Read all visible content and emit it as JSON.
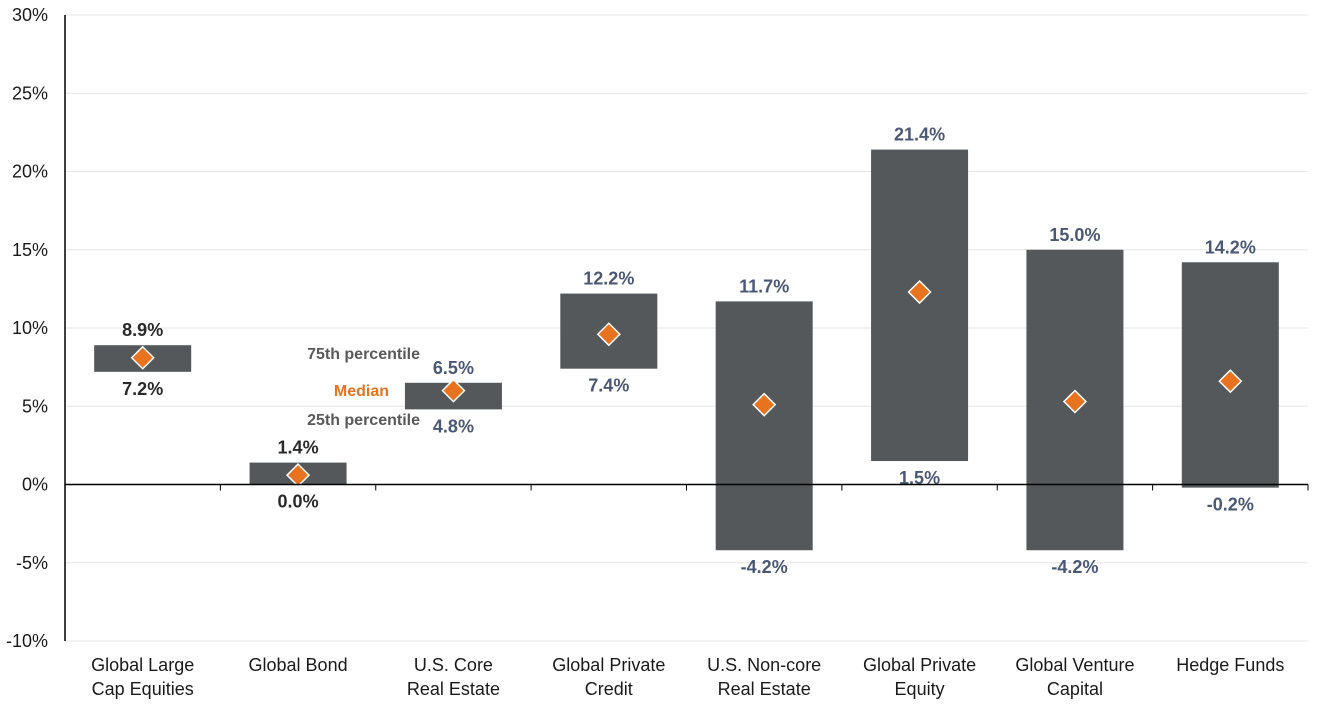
{
  "chart_data": {
    "type": "bar",
    "ylim": [
      -10,
      30
    ],
    "yticks": [
      -10,
      -5,
      0,
      5,
      10,
      15,
      20,
      25,
      30
    ],
    "ytick_labels": [
      "-10%",
      "-5%",
      "0%",
      "5%",
      "10%",
      "15%",
      "20%",
      "25%",
      "30%"
    ],
    "grid": true,
    "categories": [
      [
        "Global Large",
        "Cap Equities"
      ],
      [
        "Global Bond"
      ],
      [
        "U.S. Core",
        "Real Estate"
      ],
      [
        "Global Private",
        "Credit"
      ],
      [
        "U.S. Non-core",
        "Real Estate"
      ],
      [
        "Global Private",
        "Equity"
      ],
      [
        "Global Venture",
        "Capital"
      ],
      [
        "Hedge Funds"
      ]
    ],
    "series": [
      {
        "name": "75th percentile",
        "values": [
          8.9,
          1.4,
          6.5,
          12.2,
          11.7,
          21.4,
          15.0,
          14.2
        ]
      },
      {
        "name": "Median",
        "values": [
          8.1,
          0.6,
          6.0,
          9.6,
          5.1,
          12.3,
          5.3,
          6.6
        ]
      },
      {
        "name": "25th percentile",
        "values": [
          7.2,
          0.0,
          4.8,
          7.4,
          -4.2,
          1.5,
          -4.2,
          -0.2
        ]
      }
    ],
    "high_labels": [
      "8.9%",
      "1.4%",
      "6.5%",
      "12.2%",
      "11.7%",
      "21.4%",
      "15.0%",
      "14.2%"
    ],
    "low_labels": [
      "7.2%",
      "0.0%",
      "4.8%",
      "7.4%",
      "-4.2%",
      "1.5%",
      "-4.2%",
      "-0.2%"
    ],
    "legend": {
      "p75": "75th percentile",
      "median": "Median",
      "p25": "25th percentile",
      "attached_to": "U.S. Core Real Estate"
    }
  },
  "colors": {
    "bar": "#54585a",
    "median_marker": "#e8731f",
    "value_label": "#4a5875",
    "value_label_dark": "#2a2a2a",
    "axis": "#000000",
    "grid": "#e6e6e6",
    "legend_text": "#595959",
    "legend_median": "#e8731f"
  }
}
